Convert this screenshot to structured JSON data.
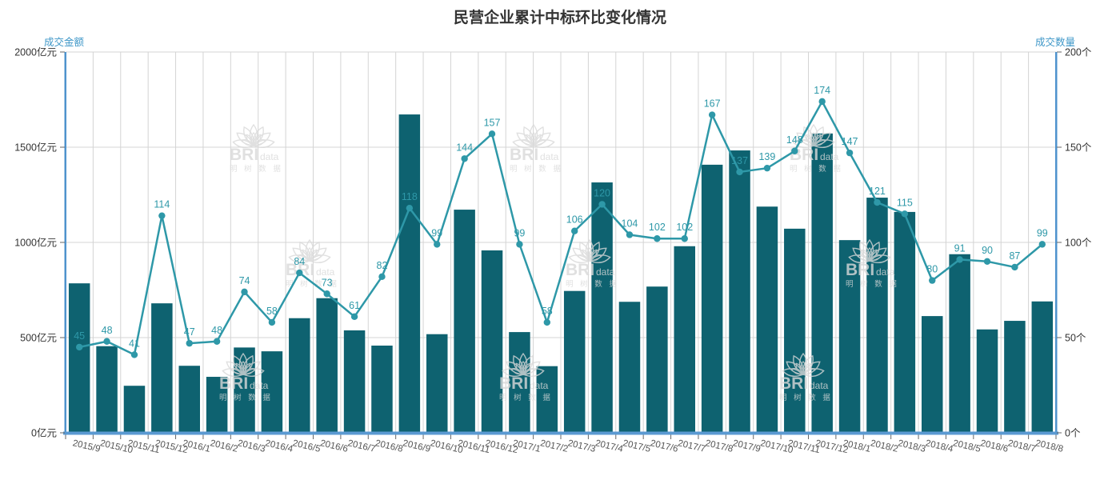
{
  "title": "民营企业累计中标环比变化情况",
  "watermark": {
    "brand": "BRI",
    "suffix": "data",
    "cn": "明 树 数 据"
  },
  "colors": {
    "bar": "#0e6270",
    "line": "#2e98a8",
    "axis_line": "#4f93cd",
    "axis_band": "#5b9ad2",
    "axis_name": "#3e97c8",
    "grid": "#d4d4d4",
    "tick_label": "#333333",
    "x_label": "#555555",
    "title": "#333333",
    "watermark": "#d9d9d9"
  },
  "chart_data": {
    "type": "bar+line",
    "title": "民营企业累计中标环比变化情况",
    "grid": true,
    "legend_position": "none",
    "categories": [
      "2015/9",
      "2015/10",
      "2015/11",
      "2015/12",
      "2016/1",
      "2016/2",
      "2016/3",
      "2016/4",
      "2016/5",
      "2016/6",
      "2016/7",
      "2016/8",
      "2016/9",
      "2016/10",
      "2016/11",
      "2016/12",
      "2017/1",
      "2017/2",
      "2017/3",
      "2017/4",
      "2017/5",
      "2017/6",
      "2017/7",
      "2017/8",
      "2017/9",
      "2017/10",
      "2017/11",
      "2017/12",
      "2018/1",
      "2018/2",
      "2018/3",
      "2018/4",
      "2018/5",
      "2018/6",
      "2018/7",
      "2018/8"
    ],
    "series": [
      {
        "name": "成交金额",
        "type": "bar",
        "y_axis": "left",
        "unit": "亿元",
        "color": "#0e6270",
        "values": [
          785,
          455,
          247,
          680,
          352,
          294,
          448,
          428,
          602,
          707,
          538,
          458,
          1672,
          518,
          1172,
          958,
          529,
          350,
          745,
          1315,
          688,
          768,
          980,
          1408,
          1483,
          1188,
          1072,
          1572,
          1012,
          1235,
          1160,
          613,
          938,
          543,
          588,
          690
        ]
      },
      {
        "name": "成交数量",
        "type": "line",
        "y_axis": "right",
        "unit": "个",
        "color": "#2e98a8",
        "show_point_labels": true,
        "values": [
          45,
          48,
          41,
          114,
          47,
          48,
          74,
          58,
          84,
          73,
          61,
          82,
          118,
          99,
          144,
          157,
          99,
          58,
          106,
          120,
          104,
          102,
          102,
          167,
          137,
          139,
          148,
          174,
          147,
          121,
          115,
          80,
          91,
          90,
          87,
          99
        ]
      }
    ],
    "left_axis": {
      "name": "成交金额",
      "min": 0,
      "max": 2000,
      "tick_labels": [
        "0亿元",
        "500亿元",
        "1000亿元",
        "1500亿元",
        "2000亿元"
      ]
    },
    "right_axis": {
      "name": "成交数量",
      "min": 0,
      "max": 200,
      "tick_labels": [
        "0个",
        "50个",
        "100个",
        "150个",
        "200个"
      ]
    }
  }
}
